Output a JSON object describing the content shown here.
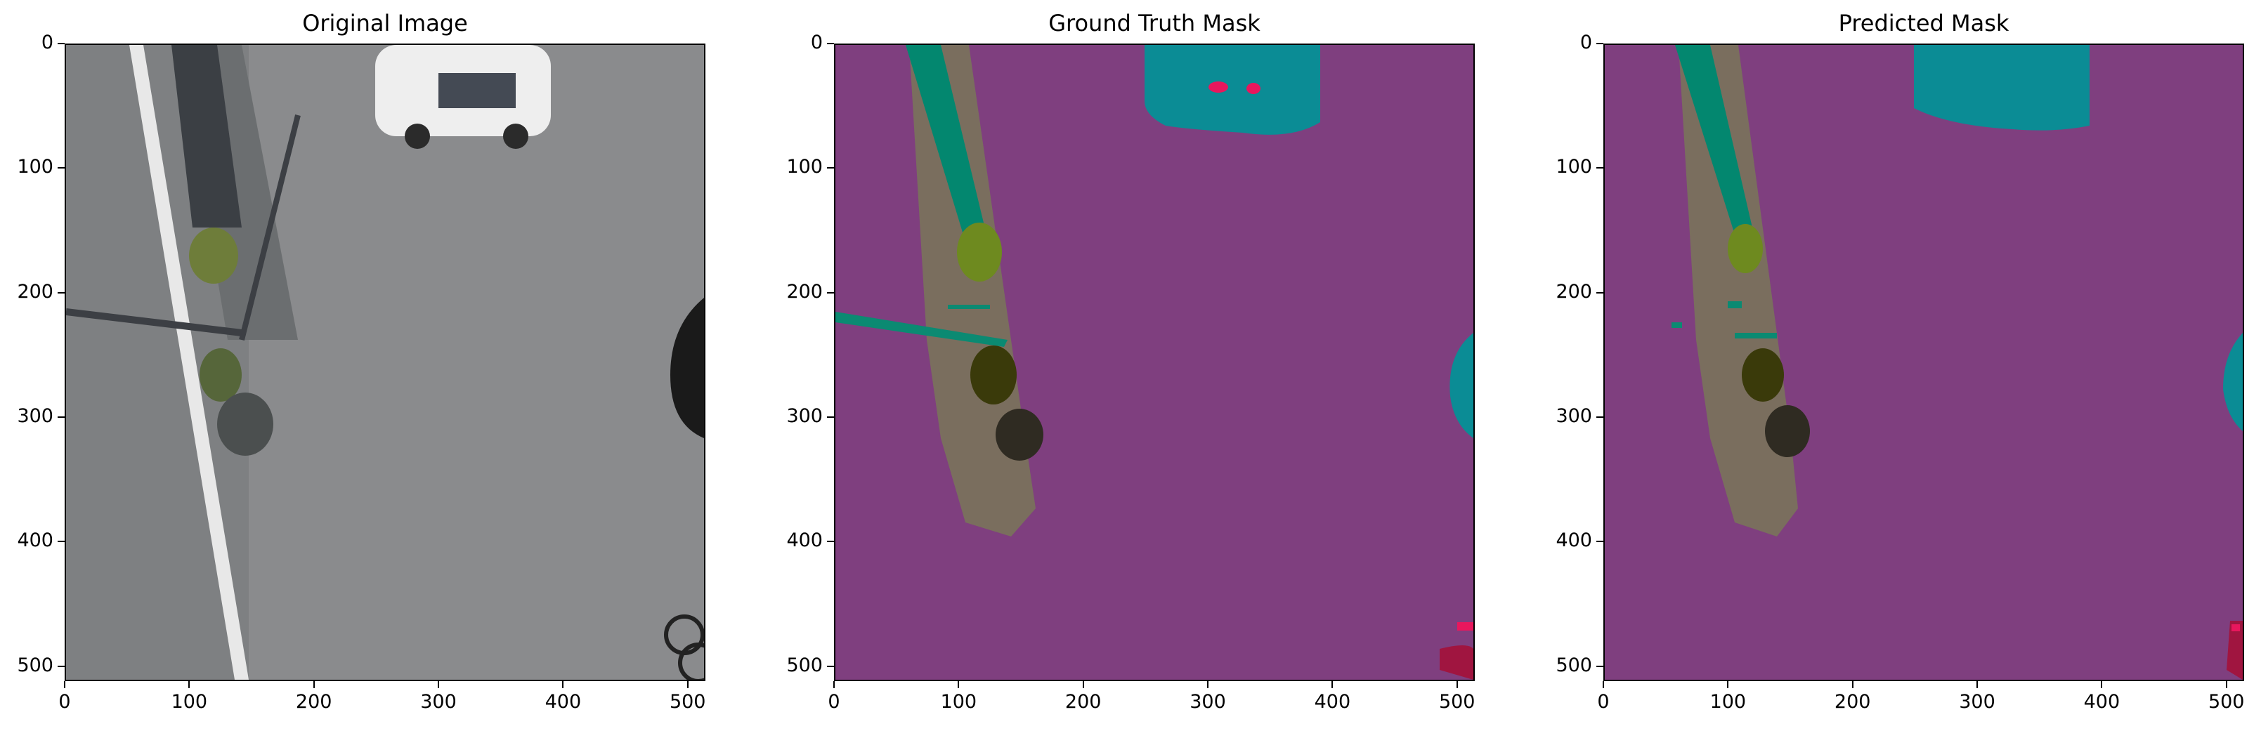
{
  "panels": [
    {
      "title": "Original Image"
    },
    {
      "title": "Ground Truth Mask"
    },
    {
      "title": "Predicted Mask"
    }
  ],
  "axes": {
    "x_ticks": [
      "0",
      "100",
      "200",
      "300",
      "400",
      "500"
    ],
    "y_ticks": [
      "0",
      "100",
      "200",
      "300",
      "400",
      "500"
    ],
    "x_tick_values": [
      0,
      100,
      200,
      300,
      400,
      500
    ],
    "y_tick_values": [
      0,
      100,
      200,
      300,
      400,
      500
    ],
    "range": [
      0,
      512
    ]
  },
  "colors": {
    "road": "#7f3f7f",
    "sidewalk": "#7a6e5e",
    "vegetation_teal": "#03876f",
    "car": "#0b8c95",
    "tree": "#6e8a1f",
    "bush_dark": "#3a3a0a",
    "rock": "#2f2b22",
    "bike": "#a01540",
    "accent_pink": "#e8175d"
  }
}
